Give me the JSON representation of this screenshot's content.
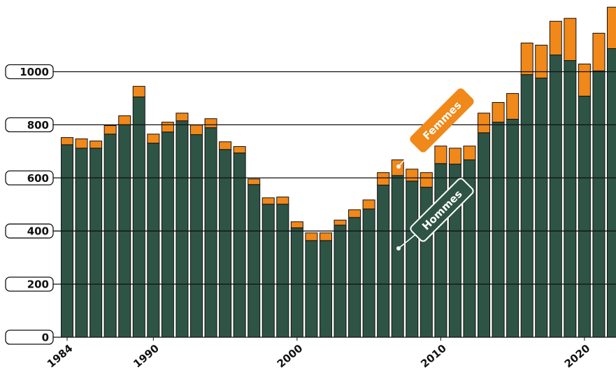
{
  "chart_data": {
    "type": "stacked-bar",
    "x": [
      1984,
      1985,
      1986,
      1987,
      1988,
      1989,
      1990,
      1991,
      1992,
      1993,
      1994,
      1995,
      1996,
      1997,
      1998,
      1999,
      2000,
      2001,
      2002,
      2003,
      2004,
      2005,
      2006,
      2007,
      2008,
      2009,
      2010,
      2011,
      2012,
      2013,
      2014,
      2015,
      2016,
      2017,
      2018,
      2019,
      2020,
      2021,
      2022
    ],
    "series": [
      {
        "name": "Hommes",
        "color": "#2e5446",
        "values": [
          725,
          712,
          712,
          765,
          800,
          905,
          731,
          773,
          815,
          763,
          789,
          707,
          694,
          575,
          501,
          501,
          412,
          364,
          364,
          422,
          451,
          483,
          573,
          609,
          588,
          565,
          654,
          652,
          668,
          770,
          810,
          821,
          989,
          976,
          1063,
          1042,
          908,
          1003,
          1087
        ]
      },
      {
        "name": "Femmes",
        "color": "#f0881a",
        "values": [
          27,
          35,
          27,
          32,
          34,
          40,
          34,
          37,
          29,
          36,
          34,
          29,
          24,
          21,
          24,
          27,
          23,
          29,
          29,
          19,
          29,
          34,
          47,
          59,
          45,
          55,
          66,
          60,
          52,
          74,
          74,
          97,
          119,
          124,
          127,
          159,
          121,
          142,
          156
        ]
      }
    ],
    "xlim": [
      1983.5,
      2022.5
    ],
    "xticks": [
      1984,
      1990,
      2000,
      2010,
      2020
    ],
    "ylim": [
      0,
      1270
    ],
    "yticks": [
      0,
      200,
      400,
      600,
      800,
      1000
    ],
    "grid": true
  }
}
